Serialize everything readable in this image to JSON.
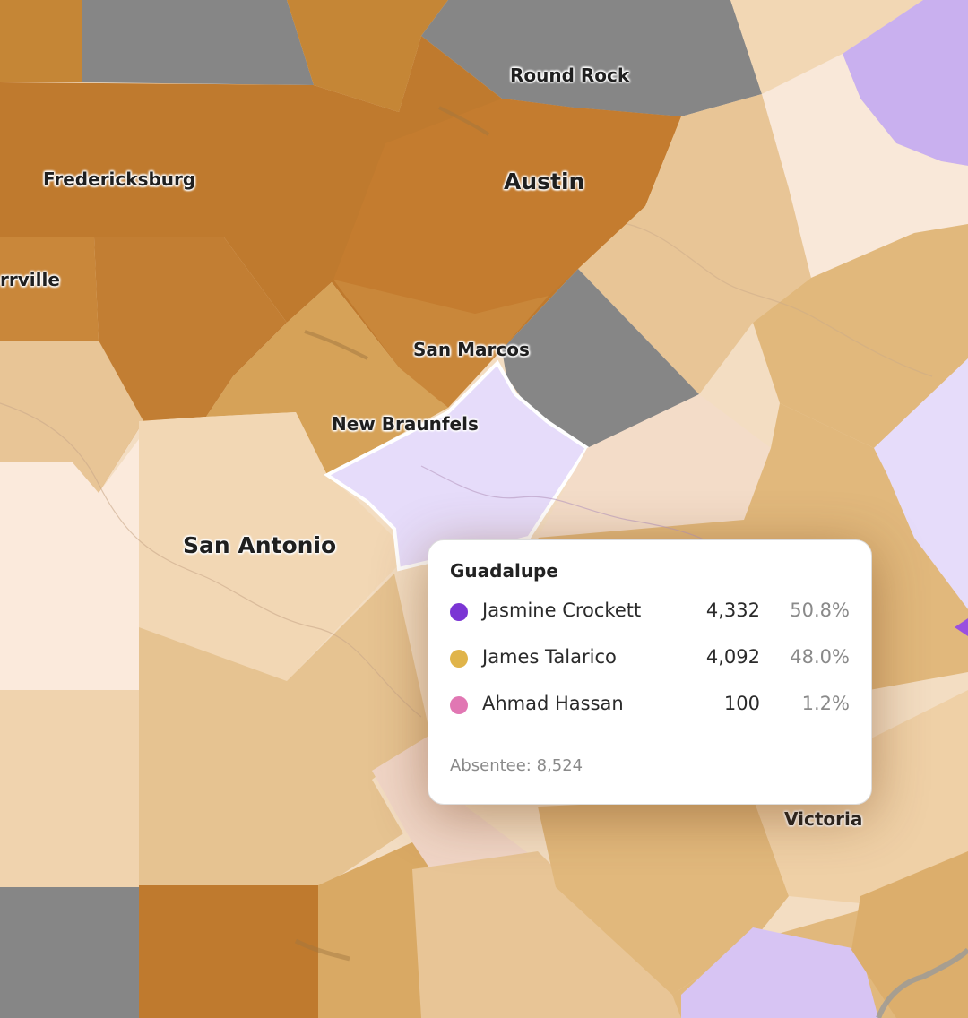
{
  "map": {
    "cities": [
      {
        "name": "Round Rock",
        "size": "small"
      },
      {
        "name": "Fredericksburg",
        "size": "small"
      },
      {
        "name": "Austin",
        "size": "big"
      },
      {
        "name": "rrville",
        "size": "small"
      },
      {
        "name": "San Marcos",
        "size": "small"
      },
      {
        "name": "New Braunfels",
        "size": "small"
      },
      {
        "name": "San Antonio",
        "size": "big"
      },
      {
        "name": "Victoria",
        "size": "small"
      }
    ],
    "colors": {
      "talarico_strong": "#bf7a2e",
      "talarico_medium": "#d6a258",
      "talarico_light": "#e8c596",
      "talarico_pale": "#f2d7b4",
      "neutral_pale": "#f9e8d9",
      "crockett_light": "#e6dcfa",
      "crockett_medium": "#c9b0ef",
      "no_data": "#868686",
      "selected_outline": "#ffffff"
    }
  },
  "tooltip": {
    "county": "Guadalupe",
    "candidates": [
      {
        "name": "Jasmine Crockett",
        "votes": "4,332",
        "pct": "50.8%",
        "color": "#7b35d4"
      },
      {
        "name": "James Talarico",
        "votes": "4,092",
        "pct": "48.0%",
        "color": "#e0b44a"
      },
      {
        "name": "Ahmad Hassan",
        "votes": "100",
        "pct": "1.2%",
        "color": "#e177b3"
      }
    ],
    "footer": "Absentee: 8,524"
  }
}
